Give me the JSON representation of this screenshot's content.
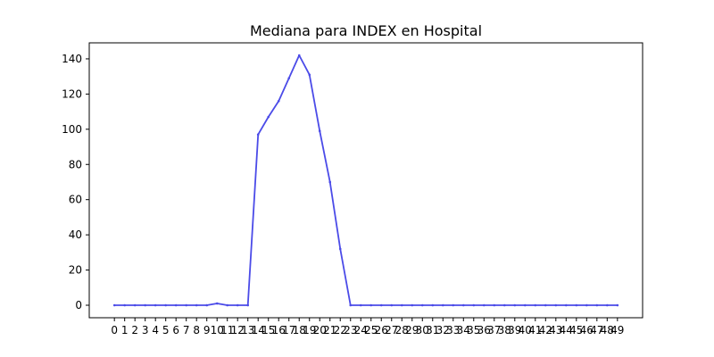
{
  "chart_data": {
    "type": "line",
    "title": "Mediana para INDEX en Hospital",
    "xlabel": "",
    "ylabel": "",
    "x": [
      0,
      1,
      2,
      3,
      4,
      5,
      6,
      7,
      8,
      9,
      10,
      11,
      12,
      13,
      14,
      15,
      16,
      17,
      18,
      19,
      20,
      21,
      22,
      23,
      24,
      25,
      26,
      27,
      28,
      29,
      30,
      31,
      32,
      33,
      34,
      35,
      36,
      37,
      38,
      39,
      40,
      41,
      42,
      43,
      44,
      45,
      46,
      47,
      48,
      49
    ],
    "x_tick_labels": [
      "0",
      "1",
      "2",
      "3",
      "4",
      "5",
      "6",
      "7",
      "8",
      "9",
      "10",
      "11",
      "12",
      "13",
      "14",
      "15",
      "16",
      "17",
      "18",
      "19",
      "20",
      "21",
      "22",
      "23",
      "24",
      "25",
      "26",
      "27",
      "28",
      "29",
      "30",
      "31",
      "32",
      "33",
      "34",
      "35",
      "36",
      "37",
      "38",
      "39",
      "40",
      "41",
      "42",
      "43",
      "44",
      "45",
      "46",
      "47",
      "48",
      "49"
    ],
    "y_ticks": [
      0,
      20,
      40,
      60,
      80,
      100,
      120,
      140
    ],
    "y_tick_labels": [
      "0",
      "20",
      "40",
      "60",
      "80",
      "100",
      "120",
      "140"
    ],
    "ylim": [
      -7.1,
      149.1
    ],
    "xlim": [
      -2.45,
      51.45
    ],
    "grid": false,
    "series": [
      {
        "name": "",
        "color": "#4b4be8",
        "values": [
          0,
          0,
          0,
          0,
          0,
          0,
          0,
          0,
          0,
          0,
          1,
          0,
          0,
          0,
          97,
          107,
          116,
          129,
          142,
          131,
          99,
          70,
          32,
          0,
          0,
          0,
          0,
          0,
          0,
          0,
          0,
          0,
          0,
          0,
          0,
          0,
          0,
          0,
          0,
          0,
          0,
          0,
          0,
          0,
          0,
          0,
          0,
          0,
          0,
          0
        ]
      }
    ]
  }
}
